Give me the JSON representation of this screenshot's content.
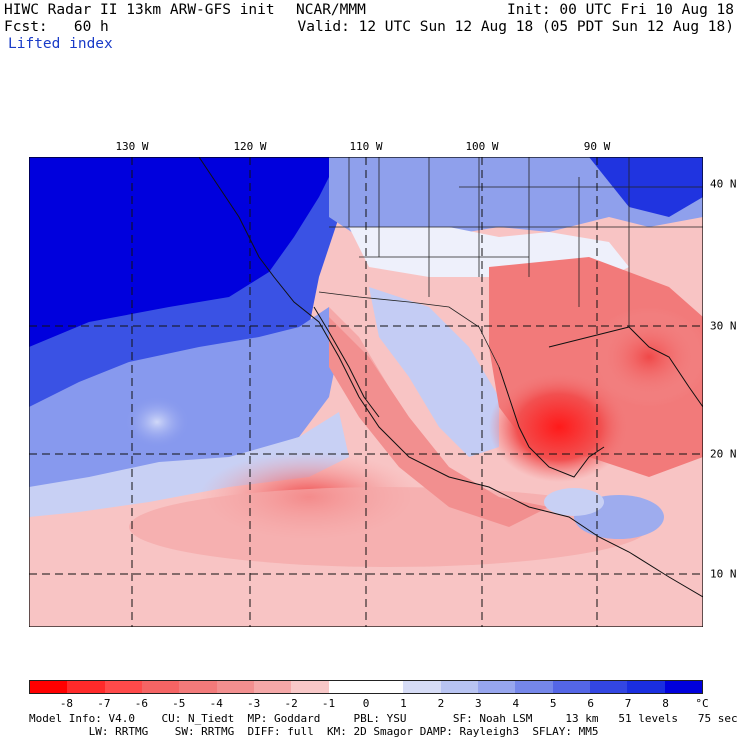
{
  "header": {
    "line1_left": "HIWC Radar II 13km ARW-GFS init",
    "org": "NCAR/MMM",
    "init": "Init: 00 UTC Fri 10 Aug 18",
    "fcst": "Fcst:   60 h",
    "valid": "Valid: 12 UTC Sun 12 Aug 18 (05 PDT Sun 12 Aug 18)",
    "field": "Lifted index"
  },
  "map": {
    "lon_labels": [
      "130 W",
      "120 W",
      "110 W",
      "100 W",
      "90 W"
    ],
    "lat_labels": [
      "40 N",
      "30 N",
      "20 N",
      "10 N"
    ]
  },
  "colorbar": {
    "ticks": [
      "-8",
      "-7",
      "-6",
      "-5",
      "-4",
      "-3",
      "-2",
      "-1",
      "0",
      "1",
      "2",
      "3",
      "4",
      "5",
      "6",
      "7",
      "8"
    ],
    "unit": "°C",
    "colors": [
      "#ff0000",
      "#ff2a2a",
      "#ff4a4a",
      "#f56464",
      "#f27a7a",
      "#f28f8f",
      "#f5a8a8",
      "#f8c8c8",
      "#ffffff",
      "#ffffff",
      "#d6dcf6",
      "#b8c4f2",
      "#97a6ee",
      "#7587ea",
      "#5466e6",
      "#3346e2",
      "#1a2ee0",
      "#0000dd"
    ]
  },
  "footer": {
    "line1": "Model Info: V4.0    CU: N_Tiedt  MP: Goddard     PBL: YSU       SF: Noah LSM     13 km   51 levels   75 sec",
    "line2": "         LW: RRTMG    SW: RRTMG  DIFF: full  KM: 2D Smagor DAMP: Rayleigh3  SFLAY: MM5"
  }
}
